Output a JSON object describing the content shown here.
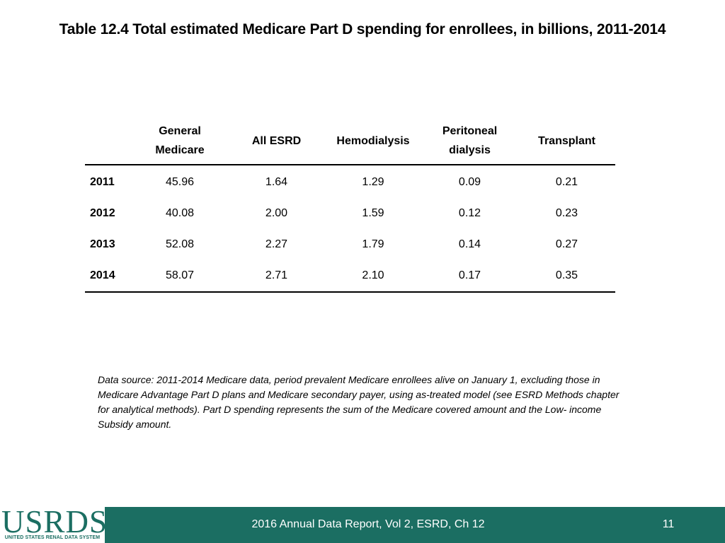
{
  "title": "Table 12.4 Total estimated Medicare Part D spending for enrollees, in billions, 2011-2014",
  "table": {
    "headers": [
      {
        "line1": "",
        "line2": ""
      },
      {
        "line1": "General",
        "line2": "Medicare"
      },
      {
        "line1": "All ESRD",
        "line2": ""
      },
      {
        "line1": "Hemodialysis",
        "line2": ""
      },
      {
        "line1": "Peritoneal",
        "line2": "dialysis"
      },
      {
        "line1": "Transplant",
        "line2": ""
      }
    ],
    "rows": [
      {
        "year": "2011",
        "values": [
          "45.96",
          "1.64",
          "1.29",
          "0.09",
          "0.21"
        ]
      },
      {
        "year": "2012",
        "values": [
          "40.08",
          "2.00",
          "1.59",
          "0.12",
          "0.23"
        ]
      },
      {
        "year": "2013",
        "values": [
          "52.08",
          "2.27",
          "1.79",
          "0.14",
          "0.27"
        ]
      },
      {
        "year": "2014",
        "values": [
          "58.07",
          "2.71",
          "2.10",
          "0.17",
          "0.35"
        ]
      }
    ]
  },
  "note": "Data source: 2011-2014 Medicare data, period prevalent Medicare enrollees alive on January 1, excluding those in Medicare Advantage Part D plans and Medicare secondary payer, using as-treated model (see ESRD Methods chapter for analytical methods). Part D spending represents the sum of the Medicare covered amount and the Low- income Subsidy amount.",
  "footer": {
    "logo_text": "USRDS",
    "logo_subtext": "UNITED STATES RENAL DATA SYSTEM",
    "text": "2016 Annual Data Report, Vol 2, ESRD, Ch 12",
    "page_number": "11"
  }
}
